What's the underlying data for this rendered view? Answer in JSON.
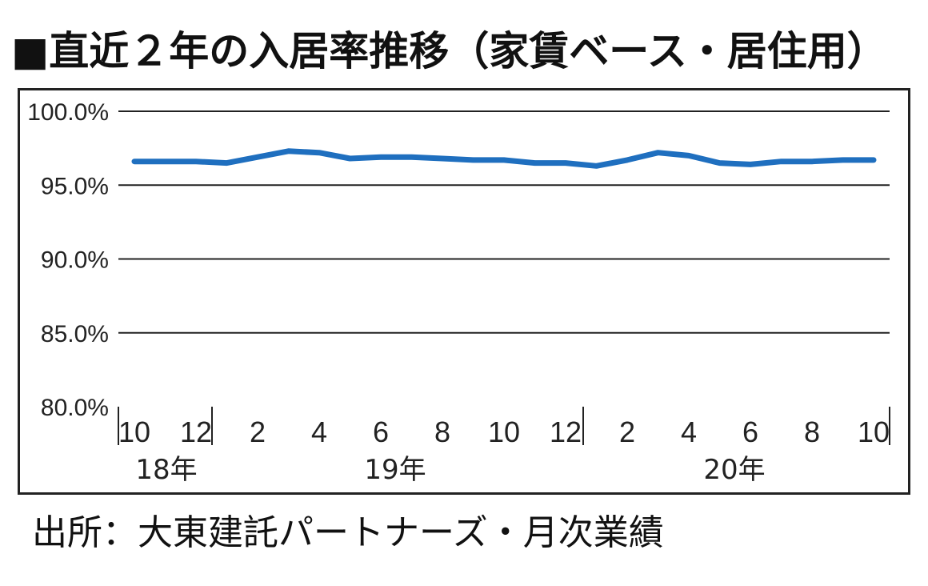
{
  "title": "■直近２年の入居率推移（家賃ベース・居住用）",
  "source": "出所：大東建託パートナーズ・月次業績",
  "chart_data": {
    "type": "line",
    "title": "■直近２年の入居率推移（家賃ベース・居住用）",
    "xlabel": "",
    "ylabel": "",
    "ylim": [
      80.0,
      100.0
    ],
    "y_ticks": [
      "80.0%",
      "85.0%",
      "90.0%",
      "95.0%",
      "100.0%"
    ],
    "x_tick_labels": [
      "10",
      "12",
      "2",
      "4",
      "6",
      "8",
      "10",
      "12",
      "2",
      "4",
      "6",
      "8",
      "10"
    ],
    "year_labels": [
      "18年",
      "19年",
      "20年"
    ],
    "grid": true,
    "x": [
      "2018-10",
      "2018-11",
      "2018-12",
      "2019-01",
      "2019-02",
      "2019-03",
      "2019-04",
      "2019-05",
      "2019-06",
      "2019-07",
      "2019-08",
      "2019-09",
      "2019-10",
      "2019-11",
      "2019-12",
      "2020-01",
      "2020-02",
      "2020-03",
      "2020-04",
      "2020-05",
      "2020-06",
      "2020-07",
      "2020-08",
      "2020-09",
      "2020-10"
    ],
    "series": [
      {
        "color": "#1f6fbf",
        "values": [
          96.6,
          96.6,
          96.6,
          96.5,
          96.9,
          97.3,
          97.2,
          96.8,
          96.9,
          96.9,
          96.8,
          96.7,
          96.7,
          96.5,
          96.5,
          96.3,
          96.7,
          97.2,
          97.0,
          96.5,
          96.4,
          96.6,
          96.6,
          96.7,
          96.7
        ]
      }
    ]
  }
}
